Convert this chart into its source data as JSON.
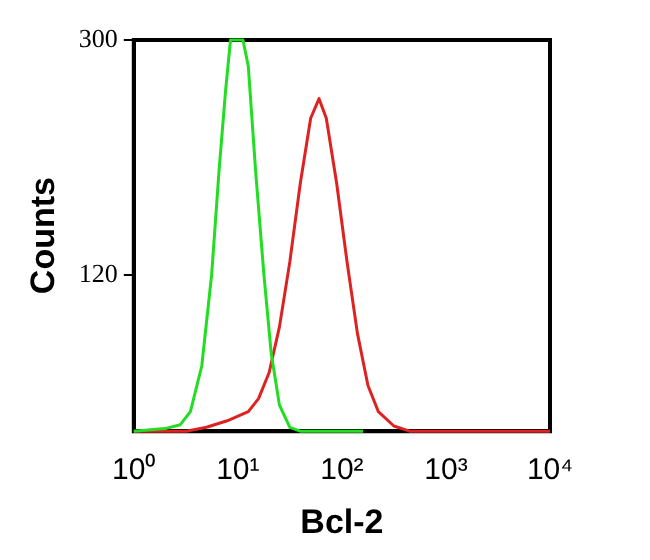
{
  "chart_data": {
    "type": "line",
    "xlabel": "Bcl-2",
    "ylabel": "Counts",
    "log": "x",
    "grid": false,
    "xlim": [
      1,
      10000
    ],
    "xticks": [
      {
        "value": 1,
        "label": "10⁰"
      },
      {
        "value": 10,
        "label": "10¹"
      },
      {
        "value": 100,
        "label": "10²"
      },
      {
        "value": 1000,
        "label": "10³"
      },
      {
        "value": 10000,
        "label": "10⁴"
      }
    ],
    "ylim": [
      0,
      300
    ],
    "yticks": [
      120,
      300
    ],
    "series": [
      {
        "color": "#22dd22",
        "x": [
          1,
          2,
          2.8,
          3.5,
          4.5,
          5.6,
          6.6,
          7.6,
          8.5,
          11.2,
          12.6,
          14.8,
          17.8,
          20.9,
          25.1,
          31.6,
          39.8,
          160
        ],
        "values": [
          0,
          2,
          5,
          15,
          50,
          120,
          200,
          260,
          300,
          300,
          280,
          200,
          120,
          60,
          20,
          3,
          0,
          0
        ]
      },
      {
        "color": "#dd2222",
        "x": [
          1,
          3.2,
          5,
          7.9,
          12.6,
          15.8,
          20,
          25.1,
          31.6,
          39.8,
          50.1,
          60.3,
          70.8,
          89.1,
          112,
          141,
          178,
          224,
          316,
          447,
          10000
        ],
        "values": [
          0,
          0,
          3,
          8,
          15,
          25,
          45,
          80,
          130,
          190,
          240,
          255,
          240,
          190,
          130,
          75,
          35,
          15,
          4,
          0,
          0
        ]
      }
    ]
  }
}
